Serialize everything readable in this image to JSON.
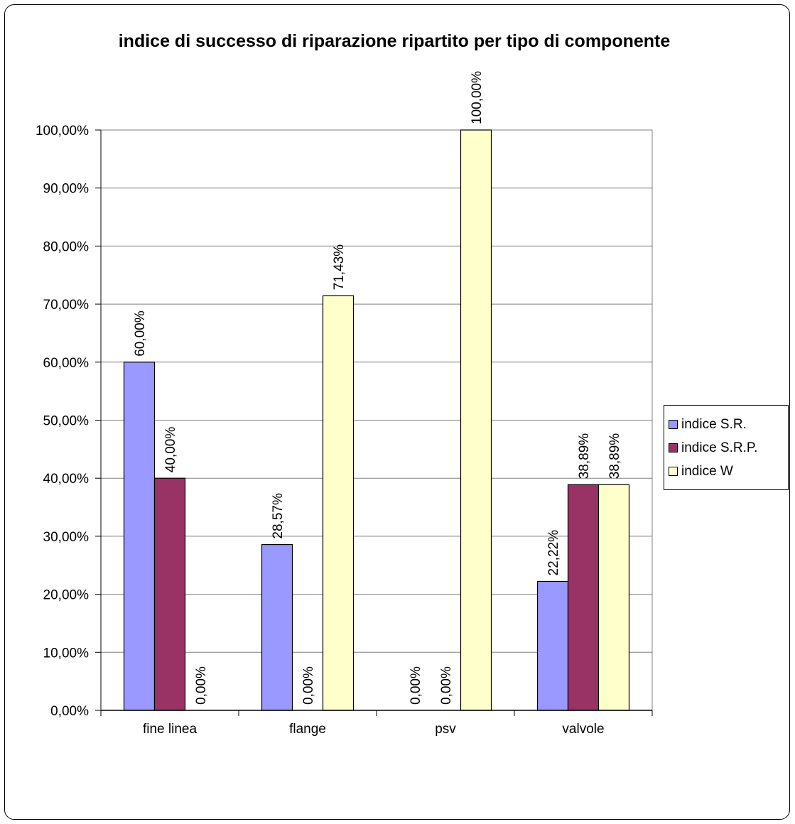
{
  "chart_data": {
    "type": "bar",
    "title": "indice di successo di riparazione ripartito per tipo di componente",
    "categories": [
      "fine linea",
      "flange",
      "psv",
      "valvole"
    ],
    "series": [
      {
        "name": "indice S.R.",
        "values": [
          60.0,
          28.57,
          0.0,
          22.22
        ],
        "labels": [
          "60,00%",
          "28,57%",
          "0,00%",
          "22,22%"
        ],
        "color": "#9999ff"
      },
      {
        "name": "indice S.R.P.",
        "values": [
          40.0,
          0.0,
          0.0,
          38.89
        ],
        "labels": [
          "40,00%",
          "0,00%",
          "0,00%",
          "38,89%"
        ],
        "color": "#993366"
      },
      {
        "name": "indice W",
        "values": [
          0.0,
          71.43,
          100.0,
          38.89
        ],
        "labels": [
          "0,00%",
          "71,43%",
          "100,00%",
          "38,89%"
        ],
        "color": "#ffffcc"
      }
    ],
    "ylim": [
      0,
      100
    ],
    "yticks": [
      0,
      10,
      20,
      30,
      40,
      50,
      60,
      70,
      80,
      90,
      100
    ],
    "ytick_labels": [
      "0,00%",
      "10,00%",
      "20,00%",
      "30,00%",
      "40,00%",
      "50,00%",
      "60,00%",
      "70,00%",
      "80,00%",
      "90,00%",
      "100,00%"
    ],
    "grid": true,
    "legend": "right"
  }
}
